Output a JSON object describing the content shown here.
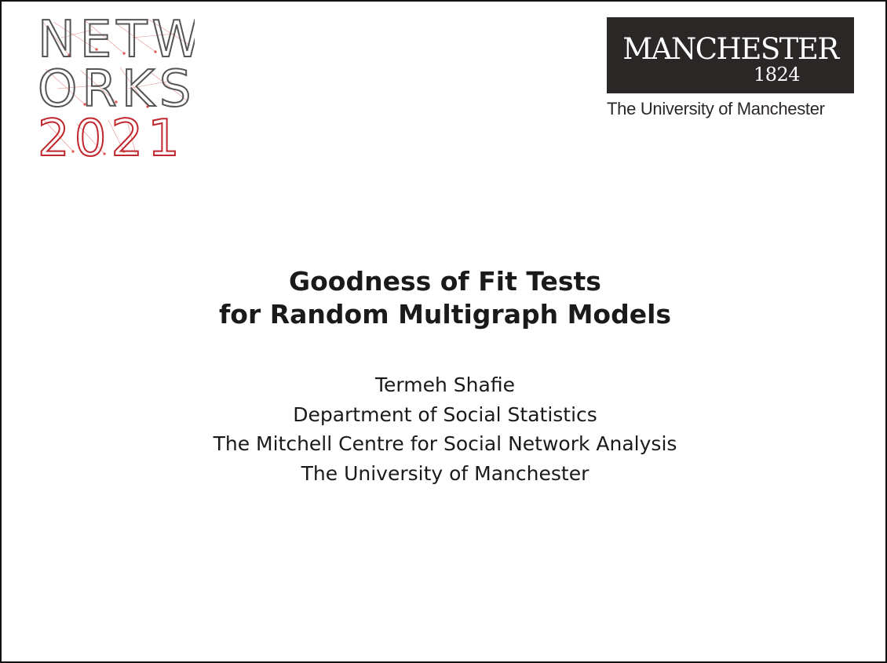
{
  "logos": {
    "conference": {
      "line1": "NETW",
      "line2": "ORKS",
      "line3": "2021",
      "colors": {
        "letters": "#555555",
        "year": "#c0272d",
        "network": "#d9534f"
      }
    },
    "university": {
      "name": "MANCHESTER",
      "year": "1824",
      "caption": "The University of Manchester",
      "colors": {
        "box": "#2b2727",
        "text": "#ffffff"
      }
    }
  },
  "title": {
    "line1": "Goodness of Fit Tests",
    "line2": "for Random Multigraph Models"
  },
  "author": {
    "name": "Termeh Shafie",
    "department": "Department of Social Statistics",
    "centre": "The Mitchell Centre for Social Network Analysis",
    "university": "The University of Manchester"
  }
}
